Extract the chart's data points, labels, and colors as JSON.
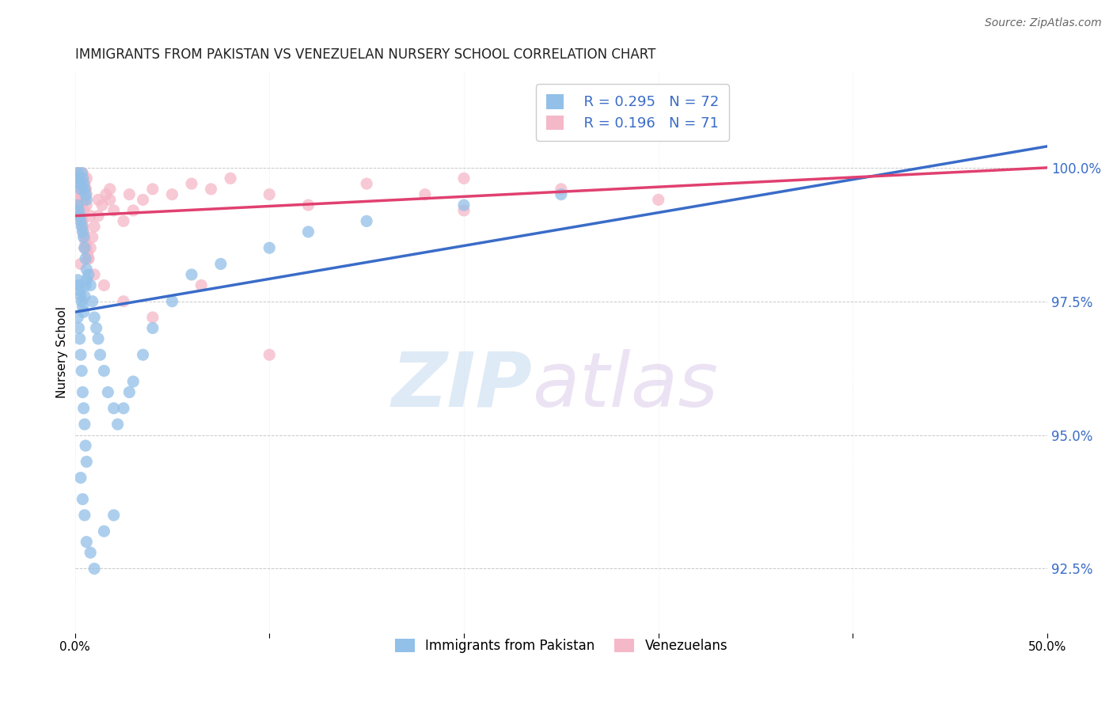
{
  "title": "IMMIGRANTS FROM PAKISTAN VS VENEZUELAN NURSERY SCHOOL CORRELATION CHART",
  "source": "Source: ZipAtlas.com",
  "ylabel": "Nursery School",
  "ytick_values": [
    92.5,
    95.0,
    97.5,
    100.0
  ],
  "xlim": [
    0.0,
    50.0
  ],
  "ylim": [
    91.3,
    101.8
  ],
  "legend_blue_r": "R = 0.295",
  "legend_blue_n": "N = 72",
  "legend_pink_r": "R = 0.196",
  "legend_pink_n": "N = 71",
  "blue_color": "#92C0E8",
  "pink_color": "#F5B8C8",
  "blue_line_color": "#3A6CC8",
  "pink_line_color": "#E04070",
  "watermark_zip": "ZIP",
  "watermark_atlas": "atlas",
  "blue_line_x0": 0.0,
  "blue_line_y0": 97.3,
  "blue_line_x1": 50.0,
  "blue_line_y1": 100.4,
  "pink_line_x0": 0.0,
  "pink_line_y0": 99.1,
  "pink_line_x1": 50.0,
  "pink_line_y1": 100.0,
  "blue_scatter_x": [
    0.15,
    0.2,
    0.25,
    0.3,
    0.35,
    0.4,
    0.45,
    0.5,
    0.55,
    0.6,
    0.15,
    0.2,
    0.25,
    0.3,
    0.35,
    0.4,
    0.45,
    0.5,
    0.55,
    0.6,
    0.15,
    0.2,
    0.25,
    0.3,
    0.35,
    0.4,
    0.45,
    0.5,
    0.55,
    0.6,
    0.15,
    0.2,
    0.25,
    0.3,
    0.35,
    0.4,
    0.45,
    0.5,
    0.55,
    0.6,
    0.7,
    0.8,
    0.9,
    1.0,
    1.1,
    1.2,
    1.3,
    1.5,
    1.7,
    2.0,
    2.2,
    2.5,
    2.8,
    3.0,
    3.5,
    4.0,
    5.0,
    6.0,
    7.5,
    10.0,
    12.0,
    15.0,
    20.0,
    25.0,
    0.3,
    0.4,
    0.5,
    0.6,
    0.8,
    1.0,
    1.5,
    2.0
  ],
  "blue_scatter_y": [
    99.9,
    99.8,
    99.7,
    99.6,
    99.9,
    99.8,
    99.7,
    99.6,
    99.5,
    99.4,
    99.3,
    99.2,
    99.1,
    99.0,
    98.9,
    98.8,
    98.7,
    98.5,
    98.3,
    98.1,
    97.9,
    97.8,
    97.7,
    97.6,
    97.5,
    97.4,
    97.3,
    97.6,
    97.8,
    97.9,
    97.2,
    97.0,
    96.8,
    96.5,
    96.2,
    95.8,
    95.5,
    95.2,
    94.8,
    94.5,
    98.0,
    97.8,
    97.5,
    97.2,
    97.0,
    96.8,
    96.5,
    96.2,
    95.8,
    95.5,
    95.2,
    95.5,
    95.8,
    96.0,
    96.5,
    97.0,
    97.5,
    98.0,
    98.2,
    98.5,
    98.8,
    99.0,
    99.3,
    99.5,
    94.2,
    93.8,
    93.5,
    93.0,
    92.8,
    92.5,
    93.2,
    93.5
  ],
  "pink_scatter_x": [
    0.15,
    0.2,
    0.25,
    0.3,
    0.35,
    0.4,
    0.45,
    0.5,
    0.55,
    0.6,
    0.15,
    0.2,
    0.25,
    0.3,
    0.35,
    0.4,
    0.45,
    0.5,
    0.55,
    0.6,
    0.15,
    0.2,
    0.25,
    0.3,
    0.35,
    0.4,
    0.45,
    0.5,
    0.55,
    0.6,
    0.65,
    0.7,
    0.8,
    0.9,
    1.0,
    1.2,
    1.4,
    1.6,
    1.8,
    2.0,
    2.5,
    3.0,
    3.5,
    4.0,
    5.0,
    6.0,
    7.0,
    8.0,
    10.0,
    12.0,
    15.0,
    18.0,
    20.0,
    25.0,
    30.0,
    0.3,
    0.5,
    0.7,
    1.0,
    1.5,
    2.5,
    4.0,
    6.5,
    10.0,
    20.0,
    0.4,
    0.6,
    0.8,
    1.2,
    1.8,
    2.8
  ],
  "pink_scatter_y": [
    99.9,
    99.8,
    99.7,
    99.6,
    99.5,
    99.9,
    99.8,
    99.7,
    99.6,
    99.5,
    99.4,
    99.3,
    99.2,
    99.1,
    99.0,
    98.9,
    99.2,
    99.4,
    99.6,
    99.8,
    99.9,
    99.7,
    99.5,
    99.3,
    99.1,
    98.9,
    98.8,
    98.7,
    98.6,
    98.5,
    98.4,
    98.3,
    98.5,
    98.7,
    98.9,
    99.1,
    99.3,
    99.5,
    99.4,
    99.2,
    99.0,
    99.2,
    99.4,
    99.6,
    99.5,
    99.7,
    99.6,
    99.8,
    99.5,
    99.3,
    99.7,
    99.5,
    99.8,
    99.6,
    99.4,
    98.2,
    98.5,
    98.3,
    98.0,
    97.8,
    97.5,
    97.2,
    97.8,
    96.5,
    99.2,
    99.0,
    99.3,
    99.1,
    99.4,
    99.6,
    99.5
  ]
}
